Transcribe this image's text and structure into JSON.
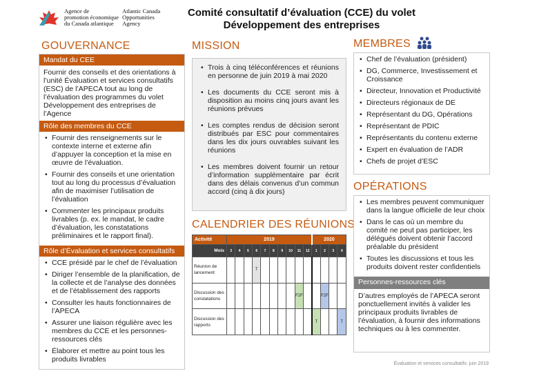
{
  "header": {
    "org_fr": [
      "Agence de",
      "promotion économique",
      "du Canada atlantique"
    ],
    "org_en": [
      "Atlantic Canada",
      "Opportunities",
      "Agency"
    ],
    "title_line1": "Comité consultatif d’évaluation (CCE) du volet",
    "title_line2": "Développement des entreprises"
  },
  "gouvernance": {
    "title": "GOUVERNANCE",
    "mandat_header": "Mandat du CEE",
    "mandat_text": "Fournir des conseils et des orientations à l’unité Évaluation et services consultatifs (ESC) de l’APECA tout au long de l’évaluation des programmes du volet Développement des entreprises de l’Agence",
    "role_membres_header": "Rôle des membres du CCE",
    "role_membres": [
      "Fournir des renseignements sur le contexte interne et externe afin d’appuyer la conception et la mise en œuvre de l’évaluation.",
      "Fournir des conseils et une orientation tout au long du processus d’évaluation afin de maximiser l’utilisation de l’évaluation",
      "Commenter les principaux produits livrables (p. ex. le mandat, le cadre d’évaluation, les constatations préliminaires et le rapport final)."
    ],
    "role_esc_header": "Rôle d’Évaluation et services consultatifs",
    "role_esc": [
      "CCE présidé par le chef de l’évaluation",
      "Diriger l’ensemble de la planification, de la collecte et de l’analyse des données et de l’établissement des rapports",
      "Consulter les hauts fonctionnaires de l’APECA",
      "Assurer une liaison régulière avec les membres du CCE et les personnes-ressources clés",
      "Élaborer et mettre au point tous les produits livrables"
    ]
  },
  "mission": {
    "title": "MISSION",
    "items": [
      "Trois à cinq téléconférences et réunions en personne de juin 2019 à mai 2020",
      "Les documents du CCE seront mis à disposition au moins cinq jours avant les réunions prévues",
      "Les comptes rendus de décision seront distribués par ESC pour commentaires dans les dix jours ouvrables suivant les réunions",
      "Les membres doivent fournir un retour d’information supplémentaire par écrit dans des délais convenus d’un commun accord (cinq à dix jours)"
    ]
  },
  "calendrier": {
    "title": "CALENDRIER DES RÉUNIONS",
    "col_activity": "Activité",
    "col_month": "Mois",
    "year1": "2019",
    "year2": "2020",
    "months": [
      "3",
      "4",
      "5",
      "6",
      "7",
      "8",
      "9",
      "10",
      "11",
      "12",
      "1",
      "2",
      "3",
      "4"
    ],
    "rows": [
      {
        "label": "Réunion de lancement",
        "cells": {
          "3": "T"
        }
      },
      {
        "label": "Discussion des constatations",
        "cells": {
          "8": "F2F",
          "11": "F2F"
        }
      },
      {
        "label": "Discussion des rapports",
        "cells": {
          "10": "T",
          "13": "T"
        }
      }
    ],
    "colors": {
      "3": "#e3e3e3",
      "8": "#c6e0b4",
      "10": "#c6e0b4",
      "11": "#b4c7e7",
      "13": "#b4c7e7"
    }
  },
  "membres": {
    "title": "MEMBRES",
    "icon": "people-group-icon",
    "items": [
      "Chef de l’évaluation (président)",
      "DG, Commerce, Investissement et Croissance",
      "Directeur, Innovation et Productivité",
      "Directeurs régionaux de DE",
      "Représentant du DG, Opérations",
      "Représentant de PDIC",
      "Représentants du contenu externe",
      "Expert en évaluation de l’ADR",
      "Chefs de projet d’ESC"
    ]
  },
  "operations": {
    "title": "OPÉRATIONS",
    "items": [
      "Les membres peuvent communiquer dans la langue officielle de leur choix",
      "Dans le cas où un membre du comité ne peut pas participer, les délégués doivent obtenir l’accord préalable du président",
      "Toutes les discussions et tous les produits doivent rester confidentiels"
    ],
    "personnes_header": "Personnes-ressources clés",
    "personnes_text": "D’autres employés de l’APECA seront ponctuellement invités à valider les principaux produits livrables de l’évaluation, à fournir des informations techniques ou à les commenter."
  },
  "footer": "Évaluation et services consultatifs: juin 2019",
  "colors": {
    "accent": "#c55a11",
    "gray_header": "#7f7f7f"
  }
}
